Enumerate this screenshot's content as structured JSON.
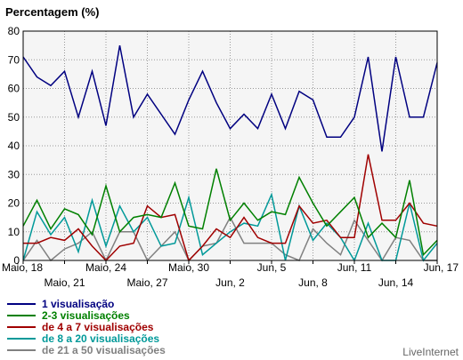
{
  "chart_data": {
    "type": "line",
    "title": "Percentagem (%)",
    "ylim": [
      0,
      80
    ],
    "yticks": [
      0,
      10,
      20,
      30,
      40,
      50,
      60,
      70,
      80
    ],
    "x_tick_row1": [
      "Maio, 18",
      "Maio, 24",
      "Maio, 30",
      "Jun, 5",
      "Jun, 11",
      "Jun, 17"
    ],
    "x_tick_row2": [
      "Maio, 21",
      "Maio, 27",
      "Jun, 2",
      "Jun, 8",
      "Jun, 14"
    ],
    "x_day_count": 31,
    "grid": true,
    "legend_position": "bottom-left",
    "series": [
      {
        "name": "1 visualisação",
        "color": "#000080",
        "values": [
          71,
          64,
          61,
          66,
          50,
          66,
          47,
          75,
          50,
          58,
          51,
          44,
          56,
          66,
          55,
          46,
          51,
          46,
          58,
          46,
          59,
          56,
          43,
          43,
          50,
          71,
          38,
          71,
          50,
          50,
          69
        ]
      },
      {
        "name": "2-3 visualisações",
        "color": "#008000",
        "values": [
          12,
          21,
          11,
          18,
          16,
          9,
          26,
          10,
          15,
          16,
          15,
          27,
          12,
          11,
          32,
          14,
          20,
          14,
          17,
          16,
          29,
          20,
          12,
          17,
          22,
          8,
          13,
          8,
          28,
          2,
          7
        ]
      },
      {
        "name": "de 4 a 7 visualisações",
        "color": "#A00000",
        "values": [
          6,
          6,
          8,
          7,
          11,
          5,
          0,
          5,
          6,
          19,
          15,
          16,
          0,
          5,
          11,
          8,
          15,
          8,
          6,
          6,
          19,
          13,
          14,
          8,
          8,
          37,
          14,
          14,
          20,
          13,
          12
        ]
      },
      {
        "name": "de 8 a 20 visualisações",
        "color": "#009999",
        "values": [
          0,
          17,
          9,
          15,
          3,
          21,
          5,
          19,
          10,
          15,
          5,
          6,
          22,
          2,
          6,
          10,
          13,
          12,
          23,
          0,
          19,
          7,
          13,
          8,
          0,
          13,
          0,
          0,
          20,
          0,
          6
        ]
      },
      {
        "name": "de 21 a 50 visualisações",
        "color": "#808080",
        "values": [
          0,
          7,
          0,
          4,
          6,
          10,
          0,
          10,
          10,
          0,
          5,
          10,
          0,
          5,
          6,
          15,
          6,
          6,
          6,
          2,
          0,
          11,
          6,
          2,
          14,
          7,
          0,
          8,
          7,
          0,
          0
        ]
      }
    ]
  },
  "brand": "LiveInternet"
}
